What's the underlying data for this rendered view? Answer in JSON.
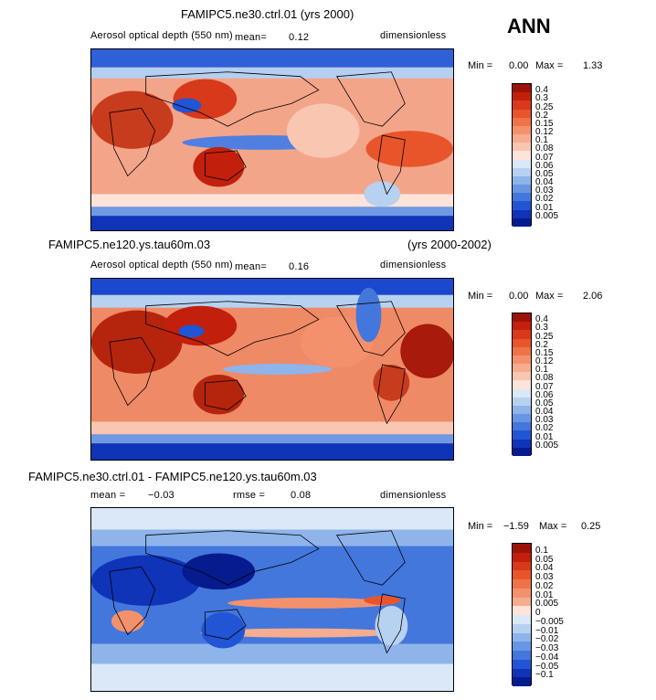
{
  "season": "ANN",
  "panels": [
    {
      "id": "top",
      "title": "FAMIPC5.ne30.ctrl.01 (yrs 2000)",
      "title_right": "",
      "field": "Aerosol optical depth (550 nm)",
      "mean_label": "mean=",
      "mean_value": "0.12",
      "rmse_label": "",
      "rmse_value": "",
      "units": "dimensionless",
      "min_label": "Min =",
      "min_value": "0.00",
      "max_label": "Max =",
      "max_value": "1.33",
      "levels": [
        "0.4",
        "0.3",
        "0.25",
        "0.2",
        "0.15",
        "0.12",
        "0.1",
        "0.08",
        "0.07",
        "0.06",
        "0.05",
        "0.04",
        "0.03",
        "0.02",
        "0.01",
        "0.005"
      ],
      "colors": [
        "#9b1209",
        "#c2200c",
        "#d8391a",
        "#e8552a",
        "#ef7349",
        "#f3916d",
        "#f6ac8f",
        "#f8c6b1",
        "#fde3d8",
        "#dbe8f7",
        "#b7d1f1",
        "#8eb4ea",
        "#6996e3",
        "#4377dc",
        "#2255d4",
        "#0f34b8",
        "#051b8e"
      ]
    },
    {
      "id": "middle",
      "title": "FAMIPC5.ne120.ys.tau60m.03",
      "title_right": "(yrs 2000-2002)",
      "field": "Aerosol optical depth (550 nm)",
      "mean_label": "mean=",
      "mean_value": "0.16",
      "rmse_label": "",
      "rmse_value": "",
      "units": "dimensionless",
      "min_label": "Min =",
      "min_value": "0.00",
      "max_label": "Max =",
      "max_value": "2.06",
      "levels": [
        "0.4",
        "0.3",
        "0.25",
        "0.2",
        "0.15",
        "0.12",
        "0.1",
        "0.08",
        "0.07",
        "0.06",
        "0.05",
        "0.04",
        "0.03",
        "0.02",
        "0.01",
        "0.005"
      ],
      "colors": [
        "#9b1209",
        "#c2200c",
        "#d8391a",
        "#e8552a",
        "#ef7349",
        "#f3916d",
        "#f6ac8f",
        "#f8c6b1",
        "#fde3d8",
        "#dbe8f7",
        "#b7d1f1",
        "#8eb4ea",
        "#6996e3",
        "#4377dc",
        "#2255d4",
        "#0f34b8",
        "#051b8e"
      ]
    },
    {
      "id": "bottom",
      "title": "FAMIPC5.ne30.ctrl.01 - FAMIPC5.ne120.ys.tau60m.03",
      "title_right": "",
      "field": "",
      "mean_label": "mean =",
      "mean_value": "−0.03",
      "rmse_label": "rmse =",
      "rmse_value": "0.08",
      "units": "dimensionless",
      "min_label": "Min =",
      "min_value": "−1.59",
      "max_label": "Max =",
      "max_value": "0.25",
      "levels": [
        "0.1",
        "0.05",
        "0.04",
        "0.03",
        "0.02",
        "0.01",
        "0.005",
        "0",
        "−0.005",
        "−0.01",
        "−0.02",
        "−0.03",
        "−0.04",
        "−0.05",
        "−0.1"
      ],
      "colors": [
        "#9b1209",
        "#c2200c",
        "#d8391a",
        "#e8552a",
        "#ef7349",
        "#f3916d",
        "#f6ac8f",
        "#fde3d8",
        "#dbe8f7",
        "#b7d1f1",
        "#8eb4ea",
        "#6996e3",
        "#4377dc",
        "#2255d4",
        "#0f34b8",
        "#051b8e"
      ]
    }
  ]
}
